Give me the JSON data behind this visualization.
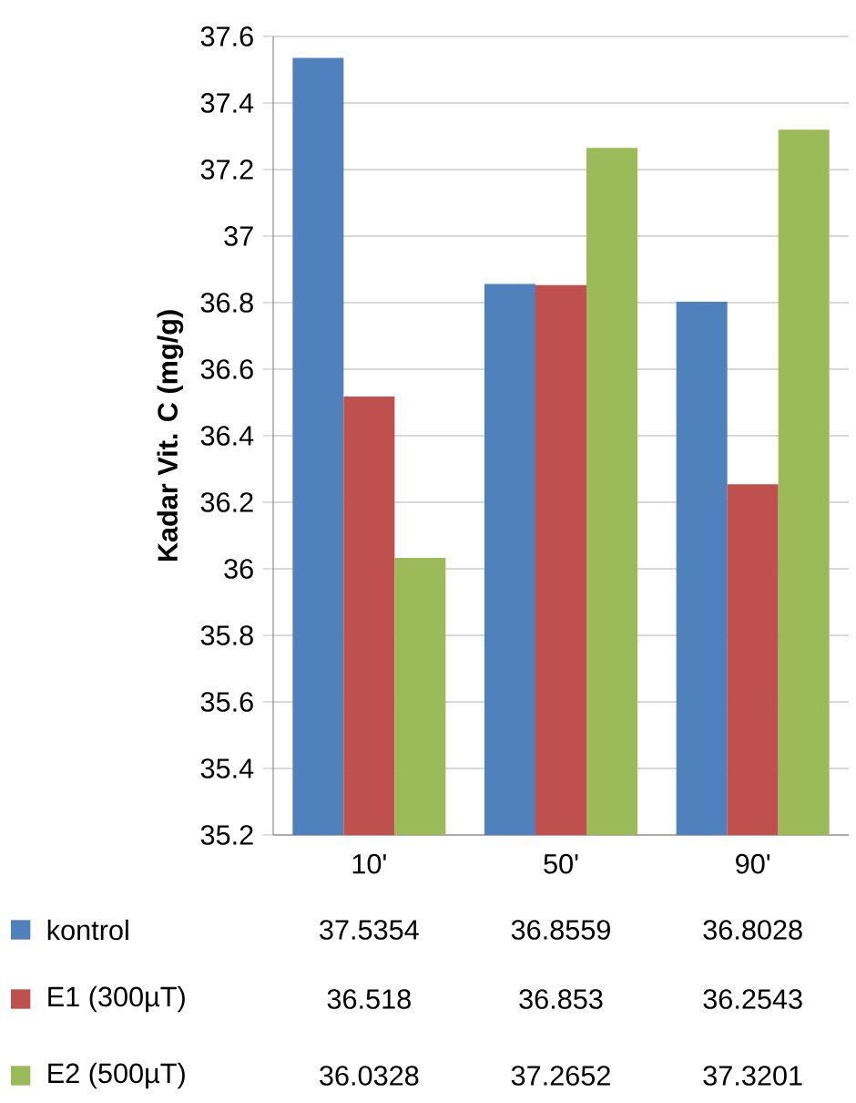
{
  "chart_data": {
    "type": "bar",
    "ylabel": "Kadar Vit. C (mg/g)",
    "categories": [
      "10'",
      "50'",
      "90'"
    ],
    "series": [
      {
        "name": "kontrol",
        "color": "#4f81bd",
        "values": [
          37.5354,
          36.8559,
          36.8028
        ]
      },
      {
        "name": "E1 (300µT)",
        "color": "#c0504d",
        "values": [
          36.518,
          36.853,
          36.2543
        ]
      },
      {
        "name": "E2 (500µT)",
        "color": "#9bbb59",
        "values": [
          36.0328,
          37.2652,
          37.3201
        ]
      }
    ],
    "ylim": [
      35.2,
      37.6
    ],
    "yticks": [
      35.2,
      35.4,
      35.6,
      35.8,
      36,
      36.2,
      36.4,
      36.6,
      36.8,
      37,
      37.2,
      37.4,
      37.6
    ],
    "grid": "y",
    "legend": "bottom",
    "data_labels": true
  }
}
